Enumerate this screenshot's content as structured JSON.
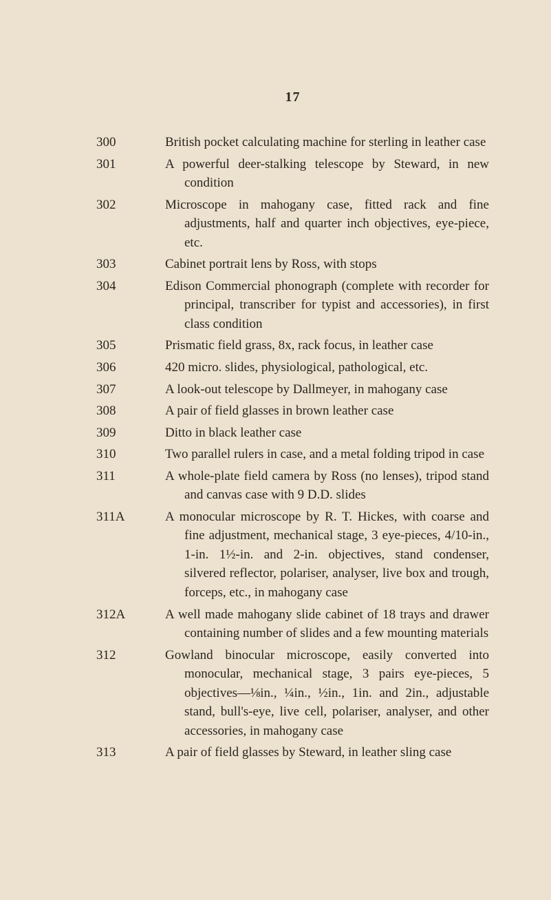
{
  "pageNumber": "17",
  "textColor": "#2a2520",
  "backgroundColor": "#ede2cf",
  "fontFamily": "Georgia, 'Times New Roman', serif",
  "bodyFontSize": 19,
  "lineHeight": 1.45,
  "entries": [
    {
      "lot": "300",
      "desc": "British pocket calculating machine for sterling in leather case"
    },
    {
      "lot": "301",
      "desc": "A powerful deer-stalking telescope by Steward, in new condition"
    },
    {
      "lot": "302",
      "desc": "Microscope in mahogany case, fitted rack and fine adjustments, half and quarter inch objectives, eye-piece, etc."
    },
    {
      "lot": "303",
      "desc": "Cabinet portrait lens by Ross, with stops"
    },
    {
      "lot": "304",
      "desc": "Edison Commercial phonograph (complete with recorder for principal, transcriber for typist and accessories), in first class condition"
    },
    {
      "lot": "305",
      "desc": "Prismatic field grass, 8x, rack focus, in leather case"
    },
    {
      "lot": "306",
      "desc": "420 micro. slides, physiological, patho­logical, etc."
    },
    {
      "lot": "307",
      "desc": "A look-out telescope by Dallmeyer, in mahogany case"
    },
    {
      "lot": "308",
      "desc": "A pair of field glasses in brown leather case"
    },
    {
      "lot": "309",
      "desc": "Ditto in black leather case"
    },
    {
      "lot": "310",
      "desc": "Two parallel rulers in case, and a metal folding tripod in case"
    },
    {
      "lot": "311",
      "desc": "A whole-plate field camera by Ross (no lenses), tripod stand and canvas case with 9 D.D. slides"
    },
    {
      "lot": "311A",
      "desc": "A monocular microscope by R. T. Hickes, with coarse and fine adjustment, mecha­nical stage, 3 eye-pieces, 4/10-in., 1-in. 1½-in. and 2-in. objectives, stand con­denser, silvered reflector, polariser, analyser, live box and trough, forceps, etc., in mahogany case"
    },
    {
      "lot": "312A",
      "desc": "A well made mahogany slide cabinet of 18 trays and drawer containing number of slides and a few mounting materials"
    },
    {
      "lot": "312",
      "desc": "Gowland binocular microscope, easily con­verted into monocular, mechanical stage, 3 pairs eye-pieces, 5 objectives—⅛in., ¼in., ½in., 1in. and 2in., adjustable stand, bull's-eye, live cell, polariser, analyser, and other accessories, in mahogany case"
    },
    {
      "lot": "313",
      "desc": "A pair of field glasses by Steward, in leather sling case"
    }
  ]
}
